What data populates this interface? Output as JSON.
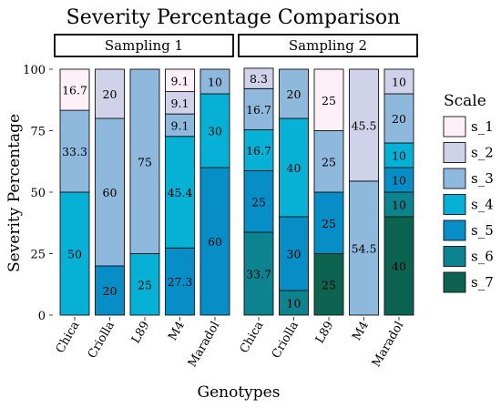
{
  "chart_data": {
    "type": "bar",
    "stacked": true,
    "title": "Severity Percentage Comparison",
    "xlabel": "Genotypes",
    "ylabel": "Severity Percentage",
    "ylim": [
      0,
      100
    ],
    "yticks": [
      0,
      25,
      50,
      75,
      100
    ],
    "categories": [
      "Chica",
      "Criolla",
      "L89",
      "M4",
      "Maradol"
    ],
    "legend": {
      "title": "Scale",
      "position": "right",
      "entries": [
        "s_1",
        "s_2",
        "s_3",
        "s_4",
        "s_5",
        "s_6",
        "s_7"
      ]
    },
    "colors": {
      "s_1": "#fdf0f6",
      "s_2": "#d0d2ea",
      "s_3": "#8fb8dd",
      "s_4": "#07b0d5",
      "s_5": "#078ec7",
      "s_6": "#0d8390",
      "s_7": "#0c6450"
    },
    "panels": [
      {
        "facet": "Sampling 1",
        "series": [
          {
            "name": "s_1",
            "values": [
              16.7,
              0,
              0,
              9.1,
              0
            ]
          },
          {
            "name": "s_2",
            "values": [
              0,
              20,
              0,
              9.1,
              0
            ]
          },
          {
            "name": "s_3",
            "values": [
              33.3,
              60,
              75,
              9.1,
              10
            ]
          },
          {
            "name": "s_4",
            "values": [
              50,
              0,
              25,
              45.4,
              30
            ]
          },
          {
            "name": "s_5",
            "values": [
              0,
              20,
              0,
              27.3,
              60
            ]
          },
          {
            "name": "s_6",
            "values": [
              0,
              0,
              0,
              0,
              0
            ]
          },
          {
            "name": "s_7",
            "values": [
              0,
              0,
              0,
              0,
              0
            ]
          }
        ],
        "labels": [
          {
            "cat": 0,
            "series": "s_1",
            "text": "16.7"
          },
          {
            "cat": 0,
            "series": "s_3",
            "text": "33.3"
          },
          {
            "cat": 0,
            "series": "s_4",
            "text": "50"
          },
          {
            "cat": 1,
            "series": "s_2",
            "text": "20"
          },
          {
            "cat": 1,
            "series": "s_3",
            "text": "60"
          },
          {
            "cat": 1,
            "series": "s_5",
            "text": "20"
          },
          {
            "cat": 2,
            "series": "s_3",
            "text": "75"
          },
          {
            "cat": 2,
            "series": "s_4",
            "text": "25"
          },
          {
            "cat": 3,
            "series": "s_1",
            "text": "9.1"
          },
          {
            "cat": 3,
            "series": "s_2",
            "text": "9.1"
          },
          {
            "cat": 3,
            "series": "s_3",
            "text": "9.1"
          },
          {
            "cat": 3,
            "series": "s_4",
            "text": "45.4"
          },
          {
            "cat": 3,
            "series": "s_5",
            "text": "27.3"
          },
          {
            "cat": 4,
            "series": "s_3",
            "text": "10"
          },
          {
            "cat": 4,
            "series": "s_4",
            "text": "30"
          },
          {
            "cat": 4,
            "series": "s_5",
            "text": "60"
          }
        ]
      },
      {
        "facet": "Sampling 2",
        "series": [
          {
            "name": "s_1",
            "values": [
              0,
              0,
              25,
              0,
              0
            ]
          },
          {
            "name": "s_2",
            "values": [
              8.3,
              0,
              0,
              45.5,
              10
            ]
          },
          {
            "name": "s_3",
            "values": [
              16.7,
              20,
              25,
              54.5,
              20
            ]
          },
          {
            "name": "s_4",
            "values": [
              16.7,
              40,
              0,
              0,
              10
            ]
          },
          {
            "name": "s_5",
            "values": [
              25,
              30,
              25,
              0,
              10
            ]
          },
          {
            "name": "s_6",
            "values": [
              33.7,
              10,
              0,
              0,
              10
            ]
          },
          {
            "name": "s_7",
            "values": [
              0,
              0,
              25,
              0,
              40
            ]
          }
        ],
        "labels": [
          {
            "cat": 0,
            "series": "s_2",
            "text": "8.3"
          },
          {
            "cat": 0,
            "series": "s_3",
            "text": "16.7"
          },
          {
            "cat": 0,
            "series": "s_4",
            "text": "16.7"
          },
          {
            "cat": 0,
            "series": "s_5",
            "text": "25"
          },
          {
            "cat": 0,
            "series": "s_6",
            "text": "33.7"
          },
          {
            "cat": 1,
            "series": "s_3",
            "text": "20"
          },
          {
            "cat": 1,
            "series": "s_4",
            "text": "40"
          },
          {
            "cat": 1,
            "series": "s_5",
            "text": "30"
          },
          {
            "cat": 1,
            "series": "s_6",
            "text": "10"
          },
          {
            "cat": 2,
            "series": "s_1",
            "text": "25"
          },
          {
            "cat": 2,
            "series": "s_3",
            "text": "25"
          },
          {
            "cat": 2,
            "series": "s_5",
            "text": "25"
          },
          {
            "cat": 2,
            "series": "s_7",
            "text": "25"
          },
          {
            "cat": 3,
            "series": "s_2",
            "text": "45.5"
          },
          {
            "cat": 3,
            "series": "s_3",
            "text": "54.5"
          },
          {
            "cat": 4,
            "series": "s_2",
            "text": "10"
          },
          {
            "cat": 4,
            "series": "s_3",
            "text": "20"
          },
          {
            "cat": 4,
            "series": "s_4",
            "text": "10"
          },
          {
            "cat": 4,
            "series": "s_5",
            "text": "10"
          },
          {
            "cat": 4,
            "series": "s_6",
            "text": "10"
          },
          {
            "cat": 4,
            "series": "s_7",
            "text": "40"
          }
        ]
      }
    ]
  }
}
